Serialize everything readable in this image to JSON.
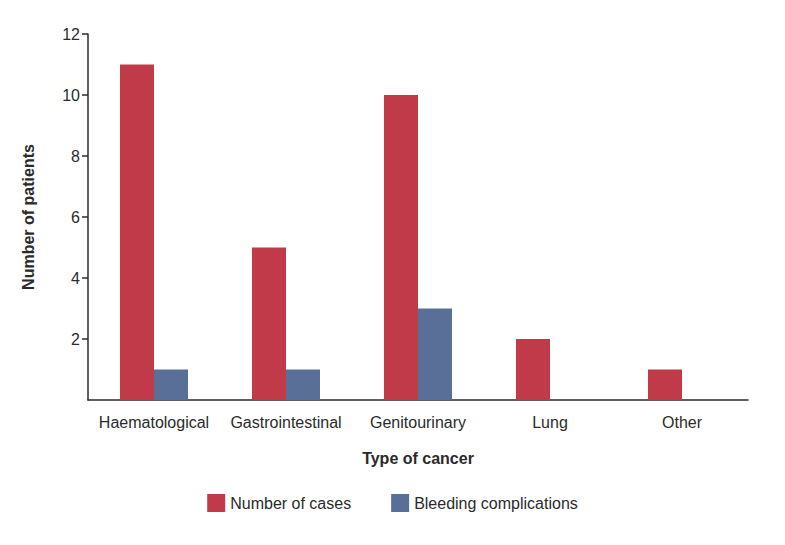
{
  "chart_data": {
    "type": "bar",
    "x_label": "Type of cancer",
    "y_label": "Number of patients",
    "categories": [
      "Haematological",
      "Gastrointestinal",
      "Genitourinary",
      "Lung",
      "Other"
    ],
    "series": [
      {
        "name": "Number of cases",
        "color": "#c03a4a",
        "values": [
          11,
          5,
          10,
          2,
          1
        ]
      },
      {
        "name": "Bleeding complications",
        "color": "#5a6f97",
        "values": [
          1,
          1,
          3,
          0,
          0
        ]
      }
    ],
    "ylim": [
      0,
      12
    ],
    "yticks": [
      2,
      4,
      6,
      8,
      10,
      12
    ],
    "grid": false,
    "legend": "bottom"
  }
}
